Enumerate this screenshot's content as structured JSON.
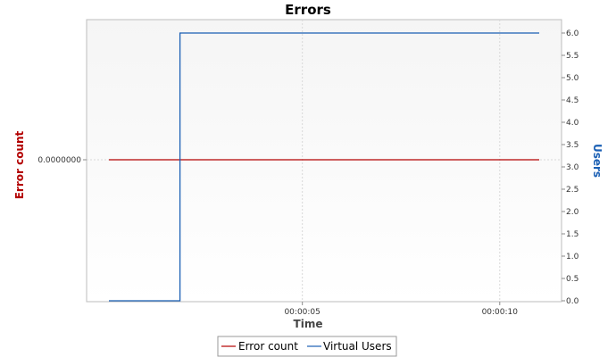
{
  "chart_data": {
    "type": "line",
    "title": "Errors",
    "xlabel": "Time",
    "ylabel_left": "Error count",
    "ylabel_right": "Users",
    "x_ticks": [
      "00:00:05",
      "00:00:10"
    ],
    "y_left_ticks": [
      "0.0000000"
    ],
    "y_right_ticks": [
      "0.0",
      "0.5",
      "1.0",
      "1.5",
      "2.0",
      "2.5",
      "3.0",
      "3.5",
      "4.0",
      "4.5",
      "5.0",
      "5.5",
      "6.0"
    ],
    "y_right_range": [
      0,
      6
    ],
    "x_range_seconds": [
      0.1,
      11.0
    ],
    "grid": true,
    "legend_position": "bottom",
    "series": [
      {
        "name": "Error count",
        "axis": "left",
        "color": "#b30000",
        "x": [
          0.1,
          11.0
        ],
        "y": [
          0,
          0
        ]
      },
      {
        "name": "Virtual Users",
        "axis": "right",
        "color": "#1a5fb4",
        "step": true,
        "x": [
          0.1,
          1.9,
          1.9,
          11.0
        ],
        "y": [
          0,
          0,
          6,
          6
        ]
      }
    ]
  }
}
